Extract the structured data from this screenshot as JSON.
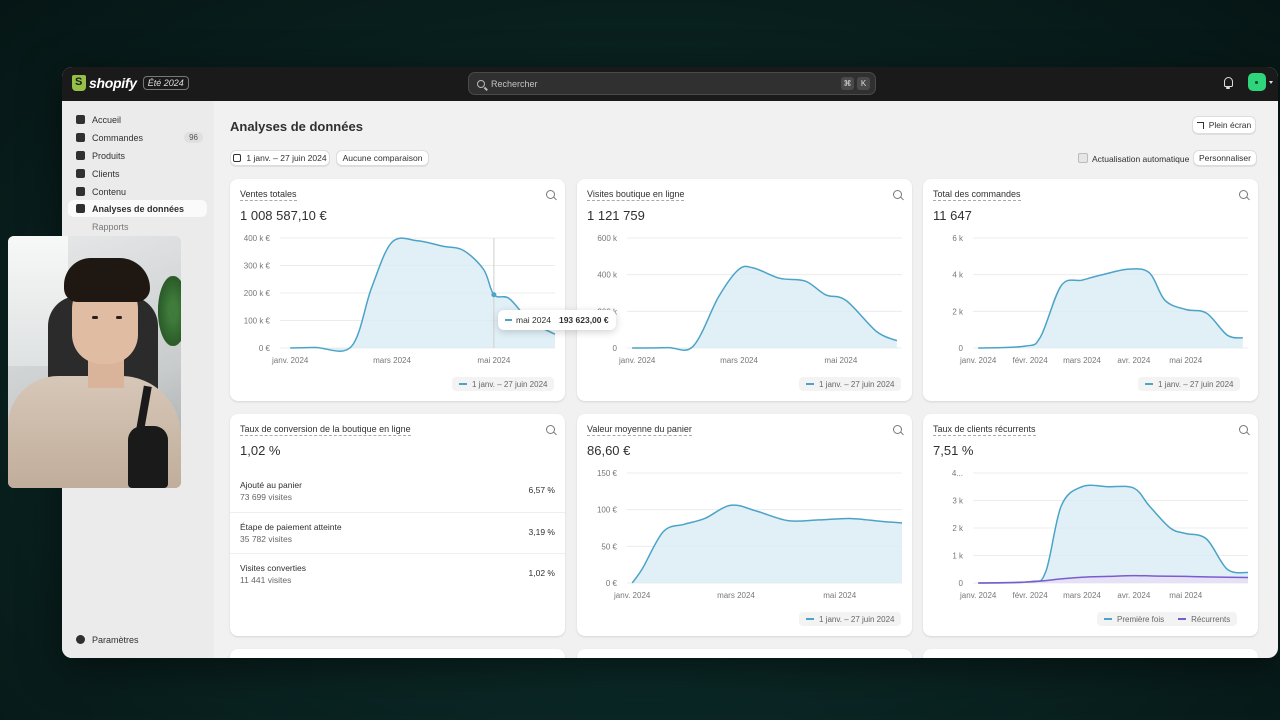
{
  "topbar": {
    "logo_text": "shopify",
    "edition": "Été 2024",
    "search_placeholder": "Rechercher",
    "shortcut_keys": [
      "⌘",
      "K"
    ]
  },
  "sidebar": {
    "items": [
      {
        "label": "Accueil",
        "icon": "home-icon"
      },
      {
        "label": "Commandes",
        "icon": "inbox-icon",
        "badge": "96"
      },
      {
        "label": "Produits",
        "icon": "tag-icon"
      },
      {
        "label": "Clients",
        "icon": "person-icon"
      },
      {
        "label": "Contenu",
        "icon": "content-icon"
      },
      {
        "label": "Analyses de données",
        "icon": "chart-icon",
        "active": true
      }
    ],
    "subitems": [
      "Rapports"
    ],
    "settings_label": "Paramètres"
  },
  "header": {
    "title": "Analyses de données",
    "fullscreen_label": "Plein écran",
    "date_range_label": "1 janv. – 27 juin 2024",
    "comparison_label": "Aucune comparaison",
    "auto_refresh_label": "Actualisation automatique",
    "customize_label": "Personnaliser"
  },
  "colors": {
    "line": "#4ba3c7",
    "area": "#d9ecf5",
    "recurring": "#7b5ccf"
  },
  "cards": {
    "sales": {
      "title": "Ventes totales",
      "value": "1 008 587,10 €",
      "legend": "1 janv. – 27 juin 2024",
      "tooltip_label": "mai 2024",
      "tooltip_value": "193 623,00 €"
    },
    "visits": {
      "title": "Visites boutique en ligne",
      "value": "1 121 759",
      "legend": "1 janv. – 27 juin 2024"
    },
    "orders": {
      "title": "Total des commandes",
      "value": "11 647",
      "legend": "1 janv. – 27 juin 2024"
    },
    "conversion": {
      "title": "Taux de conversion de la boutique en ligne",
      "value": "1,02 %",
      "rows": [
        {
          "label": "Ajouté au panier",
          "sub": "73 699 visites",
          "pct": "6,57 %"
        },
        {
          "label": "Étape de paiement atteinte",
          "sub": "35 782 visites",
          "pct": "3,19 %"
        },
        {
          "label": "Visites converties",
          "sub": "11 441 visites",
          "pct": "1,02 %"
        }
      ]
    },
    "basket": {
      "title": "Valeur moyenne du panier",
      "value": "86,60 €",
      "legend": "1 janv. – 27 juin 2024"
    },
    "returning": {
      "title": "Taux de clients récurrents",
      "value": "7,51 %",
      "legend_first": "Première fois",
      "legend_recurring": "Récurrents"
    }
  },
  "chart_data": [
    {
      "type": "area",
      "id": "sales",
      "y_ticks": [
        "0 €",
        "100 k €",
        "200 k €",
        "300 k €",
        "400 k €"
      ],
      "ylim": [
        0,
        400000
      ],
      "x_ticks": [
        {
          "label": "janv. 2024",
          "x": 0
        },
        {
          "label": "mars 2024",
          "x": 2
        },
        {
          "label": "mai 2024",
          "x": 4
        }
      ],
      "xlim": [
        -0.2,
        5.2
      ],
      "series": [
        {
          "x": [
            0,
            0.5,
            1.2,
            1.6,
            2.0,
            2.5,
            3.0,
            3.4,
            3.8,
            4.0,
            4.3,
            4.7,
            5.2
          ],
          "y": [
            0,
            2000,
            5000,
            220000,
            385000,
            390000,
            370000,
            355000,
            285000,
            193623,
            180000,
            100000,
            50000
          ]
        }
      ]
    },
    {
      "type": "area",
      "id": "visits",
      "y_ticks": [
        "0",
        "200 k",
        "400 k",
        "600 k"
      ],
      "ylim": [
        0,
        600000
      ],
      "x_ticks": [
        {
          "label": "janv. 2024",
          "x": 0
        },
        {
          "label": "mars 2024",
          "x": 2
        },
        {
          "label": "mai 2024",
          "x": 4
        }
      ],
      "xlim": [
        -0.2,
        5.2
      ],
      "series": [
        {
          "x": [
            -0.1,
            0.6,
            1.1,
            1.6,
            2.0,
            2.3,
            2.8,
            3.3,
            3.7,
            4.1,
            4.7,
            5.1
          ],
          "y": [
            0,
            2000,
            10000,
            280000,
            430000,
            435000,
            380000,
            365000,
            290000,
            260000,
            90000,
            40000
          ]
        }
      ]
    },
    {
      "type": "area",
      "id": "orders",
      "y_ticks": [
        "0",
        "2 k",
        "4 k",
        "6 k"
      ],
      "ylim": [
        0,
        6000
      ],
      "x_ticks": [
        {
          "label": "janv. 2024",
          "x": 0
        },
        {
          "label": "févr. 2024",
          "x": 1
        },
        {
          "label": "mars 2024",
          "x": 2
        },
        {
          "label": "avr. 2024",
          "x": 3
        },
        {
          "label": "mai 2024",
          "x": 4
        }
      ],
      "xlim": [
        -0.1,
        5.2
      ],
      "series": [
        {
          "x": [
            0,
            0.9,
            1.2,
            1.6,
            2.0,
            2.4,
            2.9,
            3.3,
            3.6,
            4.0,
            4.4,
            4.8,
            5.1
          ],
          "y": [
            0,
            100,
            600,
            3400,
            3700,
            4000,
            4300,
            4100,
            2600,
            2100,
            1900,
            700,
            550
          ]
        }
      ]
    },
    {
      "type": "area",
      "id": "basket",
      "y_ticks": [
        "0 €",
        "50 €",
        "100 €",
        "150 €"
      ],
      "ylim": [
        0,
        150
      ],
      "x_ticks": [
        {
          "label": "janv. 2024",
          "x": 0
        },
        {
          "label": "mars 2024",
          "x": 2
        },
        {
          "label": "mai 2024",
          "x": 4
        }
      ],
      "xlim": [
        -0.1,
        5.2
      ],
      "series": [
        {
          "x": [
            0,
            0.2,
            0.6,
            1.0,
            1.4,
            1.9,
            2.4,
            3.0,
            3.6,
            4.2,
            4.8,
            5.2
          ],
          "y": [
            0,
            20,
            70,
            80,
            88,
            106,
            98,
            85,
            86,
            88,
            84,
            82
          ]
        }
      ]
    },
    {
      "type": "area",
      "id": "returning",
      "y_ticks": [
        "0",
        "1 k",
        "2 k",
        "3 k",
        "4..."
      ],
      "ylim": [
        0,
        4000
      ],
      "x_ticks": [
        {
          "label": "janv. 2024",
          "x": 0
        },
        {
          "label": "févr. 2024",
          "x": 1
        },
        {
          "label": "mars 2024",
          "x": 2
        },
        {
          "label": "avr. 2024",
          "x": 3
        },
        {
          "label": "mai 2024",
          "x": 4
        }
      ],
      "xlim": [
        -0.1,
        5.2
      ],
      "series": [
        {
          "name": "Première fois",
          "x": [
            0,
            1.0,
            1.3,
            1.6,
            2.0,
            2.5,
            3.0,
            3.3,
            3.7,
            4.0,
            4.4,
            4.8,
            5.2
          ],
          "y": [
            0,
            50,
            400,
            2800,
            3500,
            3500,
            3450,
            2800,
            2000,
            1800,
            1600,
            500,
            380
          ]
        },
        {
          "name": "Récurrents",
          "x": [
            0,
            1.0,
            1.6,
            2.0,
            2.5,
            3.0,
            3.5,
            4.0,
            4.5,
            5.2
          ],
          "y": [
            0,
            40,
            150,
            210,
            240,
            270,
            250,
            240,
            220,
            200
          ]
        }
      ]
    }
  ]
}
